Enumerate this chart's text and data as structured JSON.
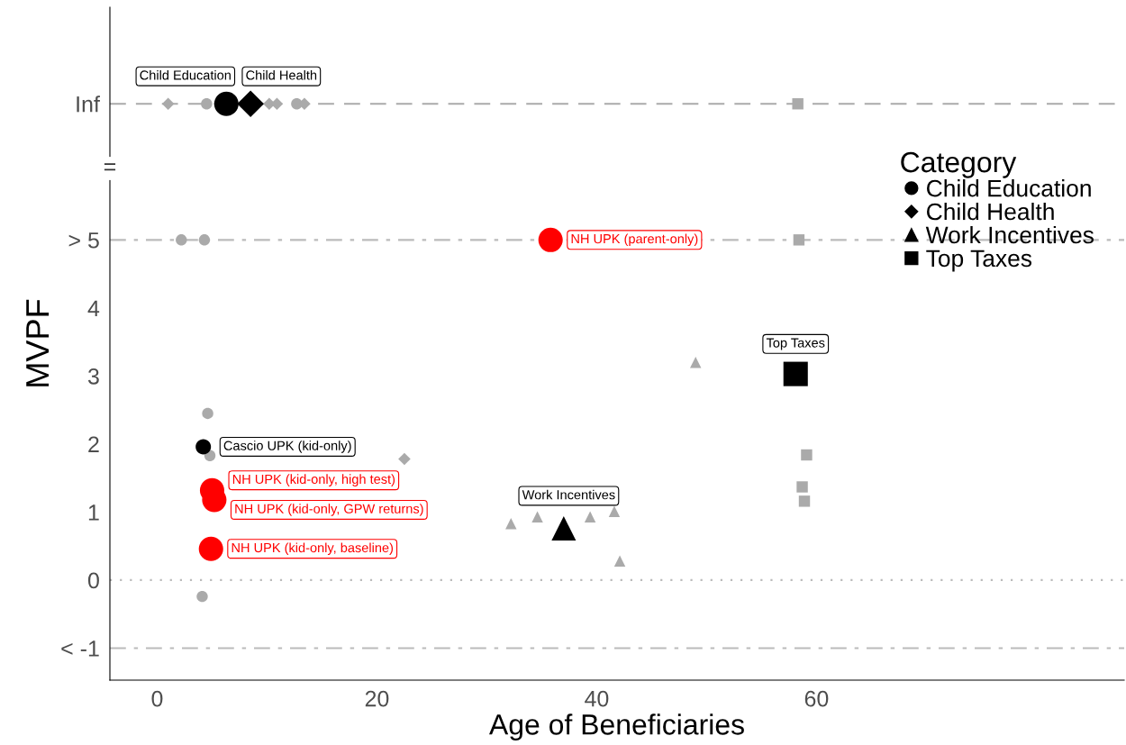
{
  "chart_data": {
    "type": "scatter",
    "xlabel": "Age of Beneficiaries",
    "ylabel": "MVPF",
    "legend_title": "Category",
    "xlim": [
      -4.3,
      88
    ],
    "xticks": [
      0,
      20,
      40,
      60
    ],
    "ylim": [
      -1.47,
      8.42
    ],
    "yticks": [
      {
        "value": -1,
        "label": "< -1"
      },
      0,
      1,
      2,
      3,
      4,
      {
        "value": 5,
        "label": "> 5"
      },
      {
        "value": 7,
        "label": "Inf"
      }
    ],
    "grid": false,
    "legend": "right",
    "ref_lines": [
      {
        "axis": "y",
        "value": 7,
        "color": "#aaaaaa",
        "line_style": "dashed"
      },
      {
        "axis": "y",
        "value": 5,
        "color": "#bbbbbb",
        "line_style": "dashdot"
      },
      {
        "axis": "y",
        "value": 0,
        "color": "#bbbbbb",
        "line_style": "dotted"
      },
      {
        "axis": "y",
        "value": -1,
        "color": "#bbbbbb",
        "line_style": "dashdot"
      }
    ],
    "series": [
      {
        "color": "#aaaaaa",
        "marker": "circle",
        "x": [
          4.5,
          12.7,
          2.2,
          4.3,
          4.6,
          4.8,
          4.1
        ],
        "values": [
          7,
          7,
          5,
          5,
          2.45,
          1.83,
          -0.24
        ]
      },
      {
        "color": "#aaaaaa",
        "marker": "diamond",
        "x": [
          1.0,
          10.2,
          10.9,
          13.4,
          22.5
        ],
        "values": [
          7,
          7,
          7,
          7,
          1.78
        ]
      },
      {
        "color": "#aaaaaa",
        "marker": "triangle",
        "x": [
          32.2,
          33.7,
          34.6,
          39.4,
          41.6,
          42.1,
          49.0
        ],
        "values": [
          0.83,
          null,
          0.93,
          0.93,
          1.01,
          0.28,
          3.2
        ]
      },
      {
        "color": "#aaaaaa",
        "marker": "square",
        "x": [
          58.3,
          58.4,
          59.1,
          58.7,
          58.9
        ],
        "values": [
          7,
          5,
          1.84,
          1.37,
          1.16
        ]
      },
      {
        "color": "#000000",
        "marker": "circle",
        "x": [
          4.2
        ],
        "values": [
          1.96
        ]
      },
      {
        "name": "Child Education",
        "color": "#000000",
        "marker": "circle",
        "x": [
          6.3
        ],
        "values": [
          7
        ]
      },
      {
        "name": "Child Health",
        "color": "#000000",
        "marker": "diamond",
        "x": [
          8.5
        ],
        "values": [
          7
        ]
      },
      {
        "name": "Work Incentives",
        "color": "#000000",
        "marker": "triangle",
        "x": [
          37.0
        ],
        "values": [
          0.76
        ]
      },
      {
        "name": "Top Taxes",
        "color": "#000000",
        "marker": "square",
        "x": [
          58.1
        ],
        "values": [
          3.03
        ]
      },
      {
        "color": "#ff0000",
        "marker": "circle",
        "x": [
          35.8,
          5.0,
          5.2,
          4.9
        ],
        "values": [
          5,
          1.32,
          1.18,
          0.46
        ]
      }
    ],
    "annotations": [
      {
        "text": "Child Education",
        "x": 6.3,
        "y": 7
      },
      {
        "text": "Child Health",
        "x": 8.5,
        "y": 7
      },
      {
        "text": "Work Incentives",
        "x": 37.0,
        "y": 0.76
      },
      {
        "text": "Top Taxes",
        "x": 58.1,
        "y": 3.03
      },
      {
        "text": "Cascio UPK (kid-only)",
        "x": 4.2,
        "y": 1.96
      },
      {
        "text": "NH UPK (parent-only)",
        "x": 35.8,
        "y": 5
      },
      {
        "text": "NH UPK (kid-only, high test)",
        "x": 5.0,
        "y": 1.32
      },
      {
        "text": "NH UPK (kid-only, GPW returns)",
        "x": 5.2,
        "y": 1.18
      },
      {
        "text": "NH UPK (kid-only, baseline)",
        "x": 4.9,
        "y": 0.46
      },
      "="
    ]
  }
}
